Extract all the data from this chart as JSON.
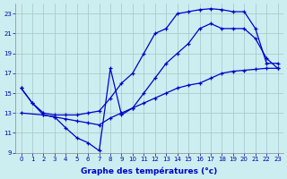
{
  "title": "Graphe des températures (°c)",
  "background_color": "#cceef0",
  "grid_color": "#aacccc",
  "line_color": "#0000cc",
  "xlim": [
    -0.5,
    23.5
  ],
  "ylim": [
    9,
    24
  ],
  "xticks": [
    0,
    1,
    2,
    3,
    4,
    5,
    6,
    7,
    8,
    9,
    10,
    11,
    12,
    13,
    14,
    15,
    16,
    17,
    18,
    19,
    20,
    21,
    22,
    23
  ],
  "yticks": [
    9,
    11,
    13,
    15,
    17,
    19,
    21,
    23
  ],
  "curve1_x": [
    0,
    1,
    2,
    3,
    4,
    5,
    6,
    7,
    8,
    9,
    10,
    11,
    12,
    13,
    14,
    15,
    16,
    17,
    18,
    19,
    20,
    21,
    22,
    23
  ],
  "curve1_y": [
    15.5,
    14.0,
    13.0,
    12.8,
    12.8,
    12.8,
    13.0,
    13.2,
    14.5,
    16.0,
    17.0,
    19.0,
    21.0,
    21.5,
    23.0,
    23.2,
    23.4,
    23.5,
    23.4,
    23.2,
    23.2,
    21.5,
    18.0,
    18.0
  ],
  "curve2_x": [
    0,
    1,
    2,
    3,
    4,
    5,
    6,
    7,
    8,
    9,
    10,
    11,
    12,
    13,
    14,
    15,
    16,
    17,
    18,
    19,
    20,
    21,
    22,
    23
  ],
  "curve2_y": [
    15.5,
    14.0,
    12.8,
    12.6,
    11.5,
    10.5,
    10.0,
    9.2,
    17.5,
    12.8,
    13.5,
    15.0,
    16.5,
    18.0,
    19.0,
    20.0,
    21.5,
    22.0,
    21.5,
    21.5,
    21.5,
    20.5,
    18.5,
    17.5
  ],
  "curve3_x": [
    0,
    2,
    3,
    4,
    5,
    6,
    7,
    8,
    9,
    10,
    11,
    12,
    13,
    14,
    15,
    16,
    17,
    18,
    19,
    20,
    21,
    22,
    23
  ],
  "curve3_y": [
    13.0,
    12.8,
    12.6,
    12.4,
    12.2,
    12.0,
    11.8,
    12.5,
    13.0,
    13.5,
    14.0,
    14.5,
    15.0,
    15.5,
    15.8,
    16.0,
    16.5,
    17.0,
    17.2,
    17.3,
    17.4,
    17.5,
    17.5
  ]
}
